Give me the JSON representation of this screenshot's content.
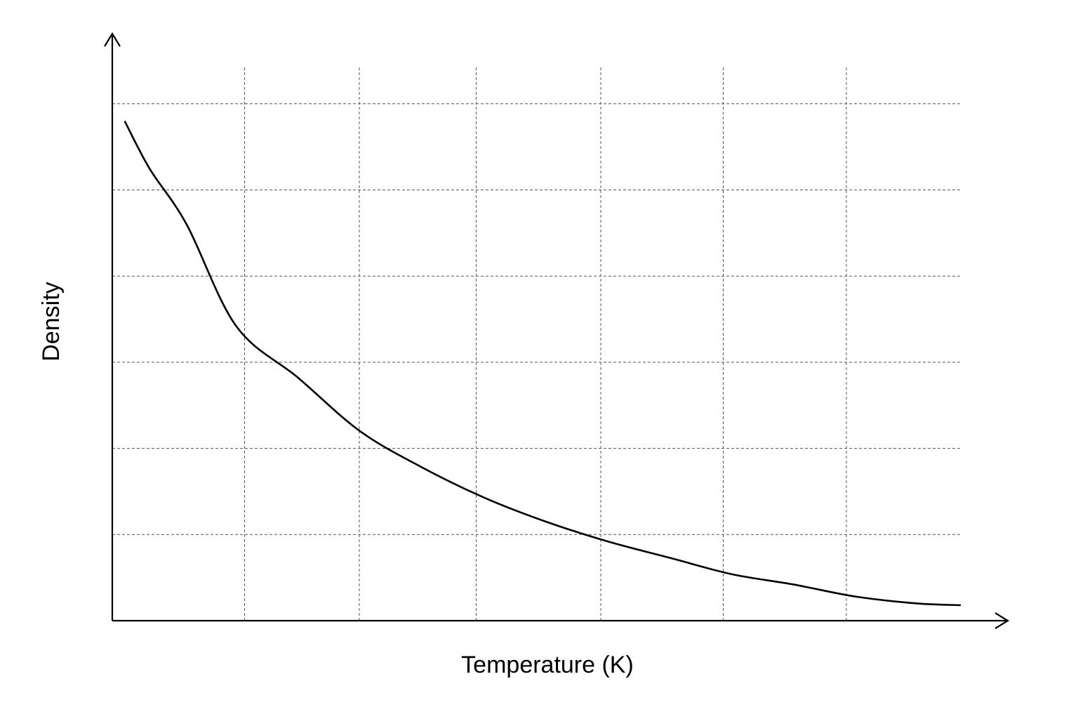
{
  "chart_data": {
    "type": "line",
    "title": "",
    "xlabel": "Temperature (K)",
    "ylabel": "Density",
    "xlim": [
      0,
      6.85
    ],
    "ylim": [
      0,
      6.2
    ],
    "grid": true,
    "x_ticks": [
      1,
      2,
      3,
      4,
      5,
      6
    ],
    "y_ticks": [
      1,
      2,
      3,
      4,
      5,
      6
    ],
    "tick_labels_visible": false,
    "series": [
      {
        "color": "#000000",
        "x": [
          0.1,
          0.3,
          0.6,
          1.0,
          1.5,
          2.0,
          2.5,
          3.0,
          3.5,
          4.0,
          4.5,
          5.0,
          5.5,
          6.0,
          6.5,
          6.85
        ],
        "y": [
          5.8,
          5.25,
          4.6,
          3.42,
          2.82,
          2.2,
          1.78,
          1.43,
          1.15,
          0.92,
          0.73,
          0.54,
          0.42,
          0.28,
          0.2,
          0.18
        ]
      }
    ]
  }
}
